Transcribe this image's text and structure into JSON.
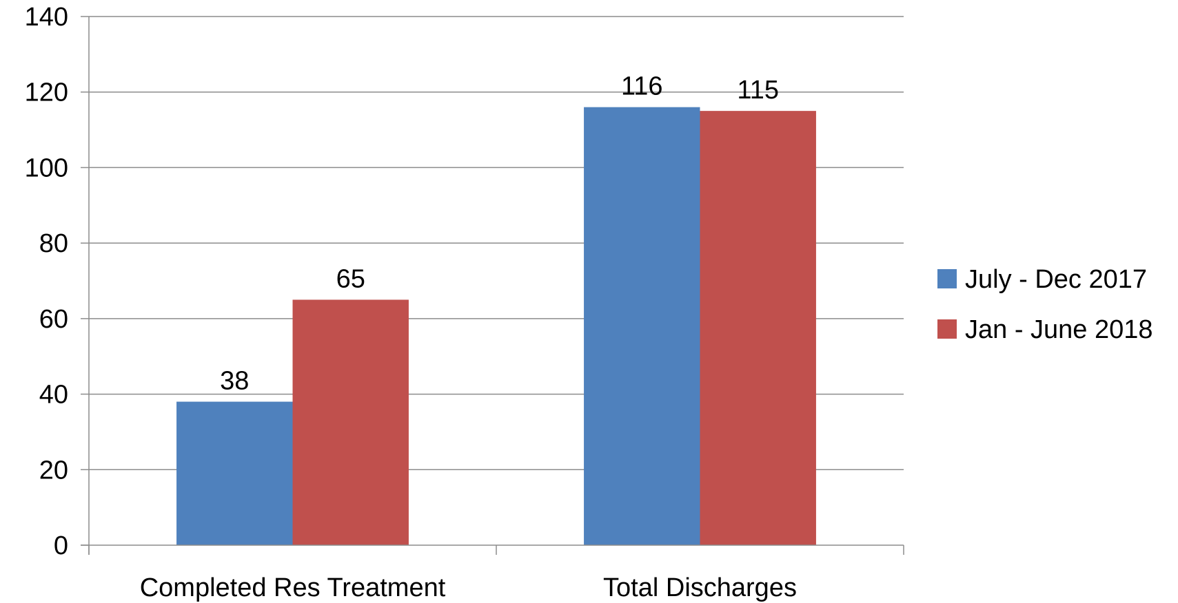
{
  "chart_data": {
    "type": "bar",
    "categories": [
      "Completed Res Treatment",
      "Total Discharges"
    ],
    "series": [
      {
        "name": "July - Dec 2017",
        "values": [
          38,
          116
        ],
        "color": "#4F81BD"
      },
      {
        "name": "Jan - June 2018",
        "values": [
          65,
          115
        ],
        "color": "#C0504D"
      }
    ],
    "ylim": [
      0,
      140
    ],
    "yticks": [
      0,
      20,
      40,
      60,
      80,
      100,
      120,
      140
    ],
    "grid": true,
    "legend": "right",
    "data_labels": true
  }
}
